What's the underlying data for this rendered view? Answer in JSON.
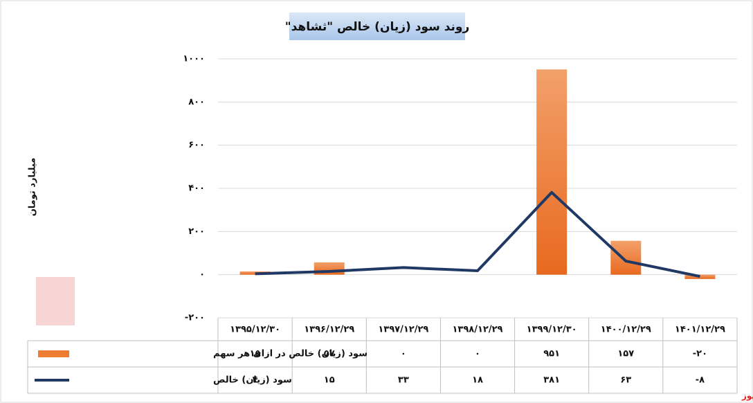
{
  "chart_data": {
    "type": "bar-line",
    "title": "روند سود (زیان) خالص \"ثشاهد\"",
    "y_label": "میلیارد تومان",
    "watermark": "بورس نیوز",
    "categories": [
      "۱۳۹۵/۱۲/۳۰",
      "۱۳۹۶/۱۲/۲۹",
      "۱۳۹۷/۱۲/۲۹",
      "۱۳۹۸/۱۲/۲۹",
      "۱۳۹۹/۱۲/۳۰",
      "۱۴۰۰/۱۲/۲۹",
      "۱۴۰۱/۱۲/۲۹"
    ],
    "series": [
      {
        "name": "سود (زیان) خالص در ازای هر سهم",
        "type": "bar",
        "color": "#ed7d31",
        "values": [
          15,
          57,
          0,
          0,
          951,
          157,
          -20
        ],
        "value_labels": [
          "۱۵",
          "۵۷",
          "۰",
          "۰",
          "۹۵۱",
          "۱۵۷",
          "-۲۰"
        ]
      },
      {
        "name": "سود (زیان) خالص",
        "type": "line",
        "color": "#1f3864",
        "values": [
          4,
          15,
          33,
          18,
          381,
          63,
          -8
        ],
        "value_labels": [
          "۴",
          "۱۵",
          "۳۳",
          "۱۸",
          "۳۸۱",
          "۶۳",
          "-۸"
        ]
      }
    ],
    "ylim": [
      -200,
      1000
    ],
    "yticks": [
      {
        "value": -200,
        "label": "-۲۰۰"
      },
      {
        "value": 0,
        "label": "۰"
      },
      {
        "value": 200,
        "label": "۲۰۰"
      },
      {
        "value": 400,
        "label": "۴۰۰"
      },
      {
        "value": 600,
        "label": "۶۰۰"
      },
      {
        "value": 800,
        "label": "۸۰۰"
      },
      {
        "value": 1000,
        "label": "۱۰۰۰"
      }
    ],
    "grid": true
  }
}
